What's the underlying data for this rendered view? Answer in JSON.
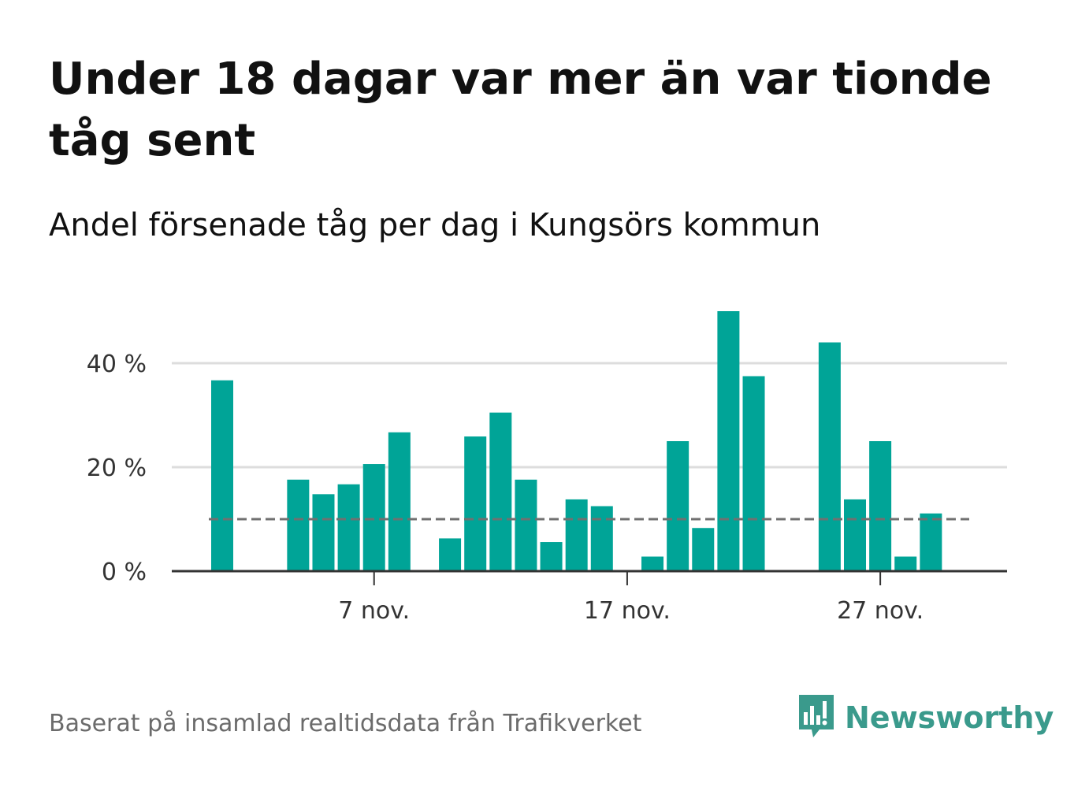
{
  "title": "Under 18 dagar var mer än var tionde tåg sent",
  "subtitle": "Andel försenade tåg per dag i Kungsörs kommun",
  "source": "Baserat på insamlad realtidsdata från Trafikverket",
  "brand": {
    "name": "Newsworthy",
    "color": "#3a9a8c",
    "icon": "newsworthy-chart-bubble-icon"
  },
  "colors": {
    "bar": "#00a497",
    "reference_line": "#707070",
    "grid": "#dddddd",
    "axis": "#333333"
  },
  "chart_data": {
    "type": "bar",
    "title": "Under 18 dagar var mer än var tionde tåg sent",
    "subtitle": "Andel försenade tåg per dag i Kungsörs kommun",
    "x_unit": "day of November",
    "categories": [
      1,
      2,
      3,
      4,
      5,
      6,
      7,
      8,
      9,
      10,
      11,
      12,
      13,
      14,
      15,
      16,
      17,
      18,
      19,
      20,
      21,
      22,
      23,
      24,
      25,
      26,
      27,
      28,
      29,
      30
    ],
    "values": [
      36.7,
      null,
      null,
      17.6,
      14.8,
      16.7,
      20.6,
      26.7,
      null,
      6.3,
      25.9,
      30.5,
      17.6,
      5.6,
      13.8,
      12.5,
      null,
      2.8,
      25.0,
      8.3,
      50.0,
      37.5,
      null,
      null,
      44.0,
      13.8,
      25.0,
      2.8,
      11.1,
      null
    ],
    "reference_line": 10,
    "ylim": [
      0,
      50
    ],
    "yticks": [
      0,
      20,
      40
    ],
    "ytick_labels": [
      "0 %",
      "20 %",
      "40 %"
    ],
    "xticks": [
      7,
      17,
      27
    ],
    "xtick_labels": [
      "7 nov.",
      "17 nov.",
      "27 nov."
    ],
    "grid": true,
    "legend": "none"
  }
}
